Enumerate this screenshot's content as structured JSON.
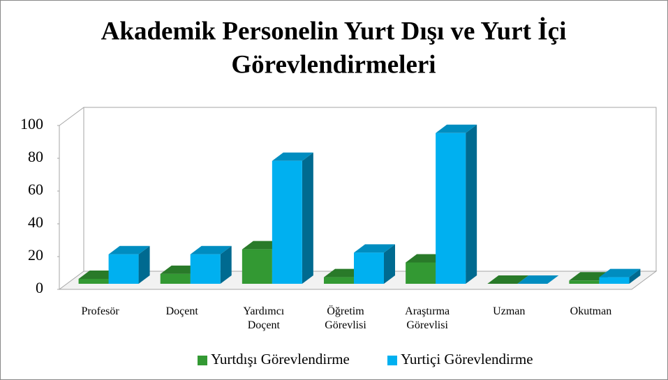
{
  "chart_data": {
    "type": "bar3d",
    "title": [
      "Akademik Personelin Yurt Dışı ve Yurt İçi",
      "Görevlendirmeleri"
    ],
    "categories": [
      "Profesör",
      "Doçent",
      "Yardımcı Doçent",
      "Öğretim Görevlisi",
      "Araştırma Görevlisi",
      "Uzman",
      "Okutman"
    ],
    "series": [
      {
        "name": "Yurtdışı Görevlendirme",
        "color": "#339933",
        "values": [
          3,
          6,
          21,
          4,
          13,
          0,
          2
        ]
      },
      {
        "name": "Yurtiçi Görevlendirme",
        "color": "#00b0f0",
        "values": [
          18,
          18,
          75,
          19,
          92,
          0,
          4
        ]
      }
    ],
    "ylim": [
      0,
      100
    ],
    "yticks": [
      0,
      20,
      40,
      60,
      80,
      100
    ],
    "grid": false,
    "legend": "bottom"
  }
}
